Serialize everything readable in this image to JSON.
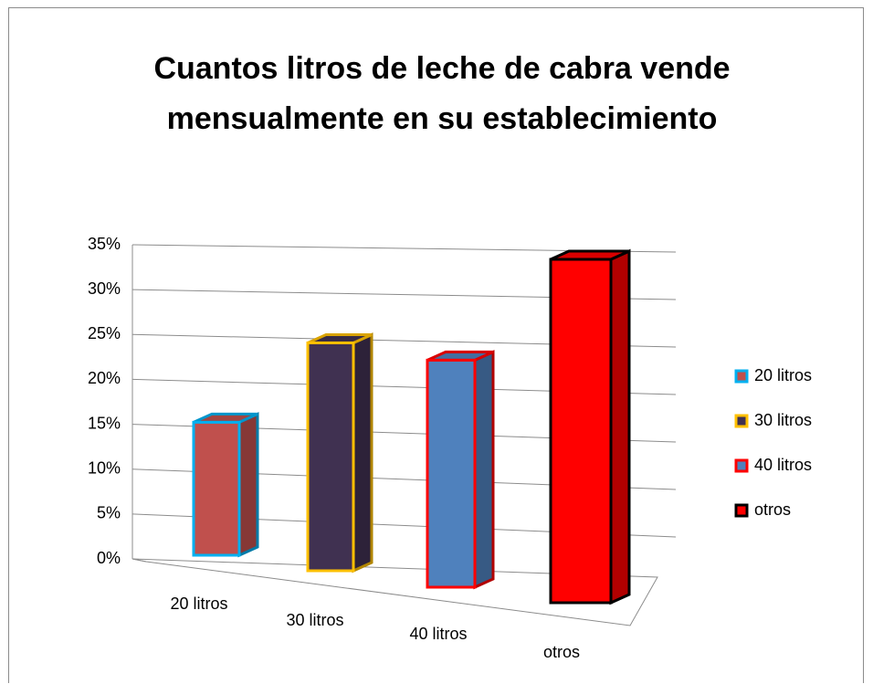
{
  "chart_data": {
    "type": "bar3d",
    "title": "Cuantos litros de leche de cabra vende mensualmente en su establecimiento",
    "categories": [
      "20 litros",
      "30 litros",
      "40 litros",
      "otros"
    ],
    "values": [
      14,
      23,
      22,
      32
    ],
    "colors": [
      "#c0504d",
      "#403151",
      "#4f81bd",
      "#ff0000"
    ],
    "border_colors": [
      "#00b0f0",
      "#ffc000",
      "#ff0000",
      "#000000"
    ],
    "ylim": [
      0,
      35
    ],
    "yticks": [
      {
        "value": 0,
        "label": "0%"
      },
      {
        "value": 5,
        "label": "5%"
      },
      {
        "value": 10,
        "label": "10%"
      },
      {
        "value": 15,
        "label": "15%"
      },
      {
        "value": 20,
        "label": "20%"
      },
      {
        "value": 25,
        "label": "25%"
      },
      {
        "value": 30,
        "label": "30%"
      },
      {
        "value": 35,
        "label": "35%"
      }
    ],
    "grid": true,
    "legend": "right"
  }
}
